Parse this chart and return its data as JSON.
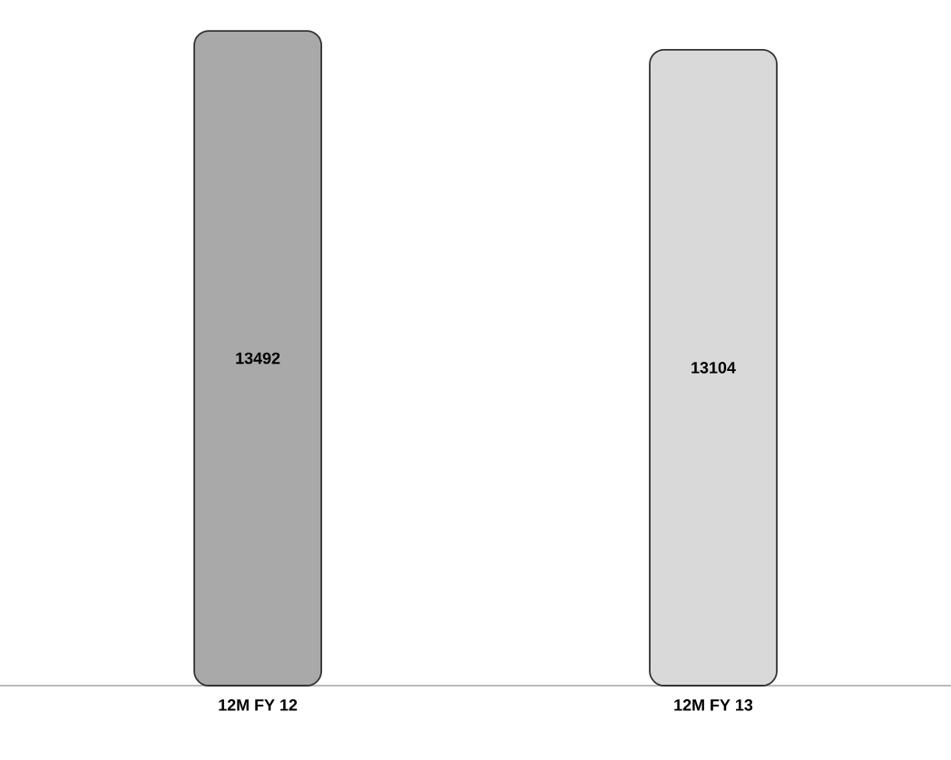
{
  "chart_data": {
    "type": "bar",
    "categories": [
      "12M FY 12",
      "12M FY 13"
    ],
    "values": [
      13492,
      13104
    ],
    "colors": [
      "#a9a9a9",
      "#d9d9d9"
    ],
    "data_labels": true
  }
}
